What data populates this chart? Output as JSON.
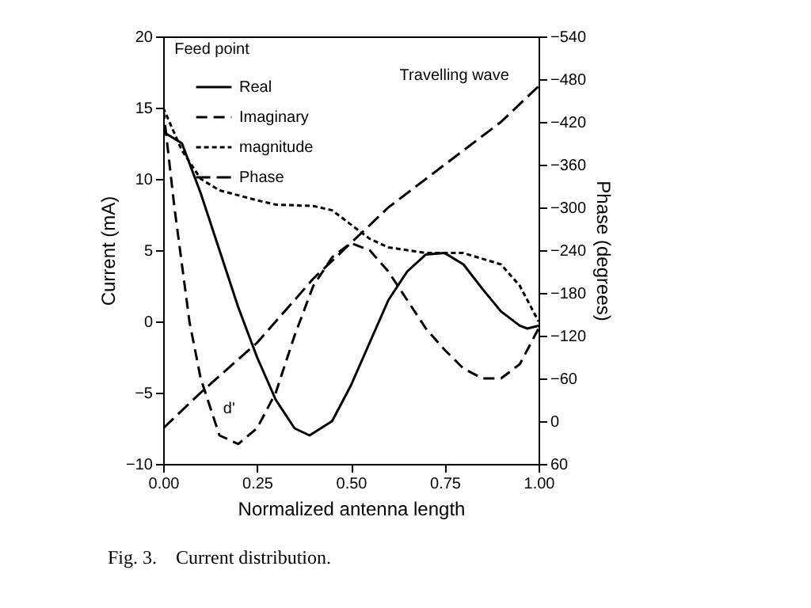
{
  "chart_data": {
    "type": "line",
    "xlabel": "Normalized antenna length",
    "ylabel": "Current (mA)",
    "y2label": "Phase (degrees)",
    "annotations": [
      "Feed point",
      "Travelling wave",
      "d'",
      "Fig. 3.    Current distribution."
    ],
    "xlim": [
      0,
      1
    ],
    "xticks": [
      {
        "value": 0,
        "label": "0.00"
      },
      {
        "value": 0.25,
        "label": "0.25"
      },
      {
        "value": 0.5,
        "label": "0.50"
      },
      {
        "value": 0.75,
        "label": "0.75"
      },
      {
        "value": 1,
        "label": "1.00"
      }
    ],
    "ylim": [
      -10,
      20
    ],
    "yticks": [
      -10,
      -5,
      0,
      5,
      10,
      15,
      20
    ],
    "y2lim": [
      60,
      -540
    ],
    "y2ticks": [
      60,
      0,
      -60,
      -120,
      -180,
      -240,
      -300,
      -360,
      -420,
      -480,
      -540
    ],
    "grid": false,
    "legend": "top left",
    "series": [
      {
        "name": "Real",
        "color": "#000000",
        "line_style": "solid",
        "x": [
          0,
          0.05,
          0.1,
          0.15,
          0.2,
          0.25,
          0.3,
          0.35,
          0.39,
          0.45,
          0.5,
          0.55,
          0.6,
          0.65,
          0.7,
          0.75,
          0.8,
          0.85,
          0.9,
          0.95,
          0.97,
          1
        ],
        "values": [
          13.3,
          12.5,
          9,
          5,
          1,
          -2.5,
          -5.5,
          -7.5,
          -8,
          -7,
          -4.5,
          -1.5,
          1.5,
          3.5,
          4.7,
          4.8,
          4,
          2.3,
          0.7,
          -0.3,
          -0.5,
          -0.3
        ]
      },
      {
        "name": "Imaginary",
        "color": "#000000",
        "line_style": "dashed",
        "x": [
          0,
          0.03,
          0.07,
          0.1,
          0.15,
          0.2,
          0.25,
          0.3,
          0.35,
          0.4,
          0.45,
          0.5,
          0.55,
          0.6,
          0.65,
          0.7,
          0.75,
          0.8,
          0.85,
          0.9,
          0.95,
          1
        ],
        "values": [
          15,
          8,
          0,
          -4,
          -8,
          -8.6,
          -7.5,
          -5,
          -1,
          2.5,
          4.5,
          5.5,
          5,
          3.5,
          1.5,
          -0.5,
          -2,
          -3.3,
          -4,
          -4,
          -3,
          -0.5
        ]
      },
      {
        "name": "magnitude",
        "color": "#000000",
        "line_style": "dotted",
        "x": [
          0,
          0.05,
          0.1,
          0.15,
          0.25,
          0.3,
          0.4,
          0.45,
          0.5,
          0.55,
          0.6,
          0.7,
          0.8,
          0.9,
          0.95,
          1
        ],
        "values": [
          15,
          12,
          10,
          9.2,
          8.5,
          8.2,
          8.1,
          7.8,
          6.8,
          5.8,
          5.2,
          4.8,
          4.8,
          4,
          2.5,
          0
        ]
      },
      {
        "name": "Phase",
        "color": "#000000",
        "line_style": "dashed",
        "axis": "y2",
        "x": [
          0,
          0.1,
          0.25,
          0.4,
          0.5,
          0.6,
          0.75,
          0.9,
          1
        ],
        "values": [
          10,
          -40,
          -110,
          -200,
          -250,
          -300,
          -360,
          -420,
          -470
        ]
      }
    ]
  }
}
